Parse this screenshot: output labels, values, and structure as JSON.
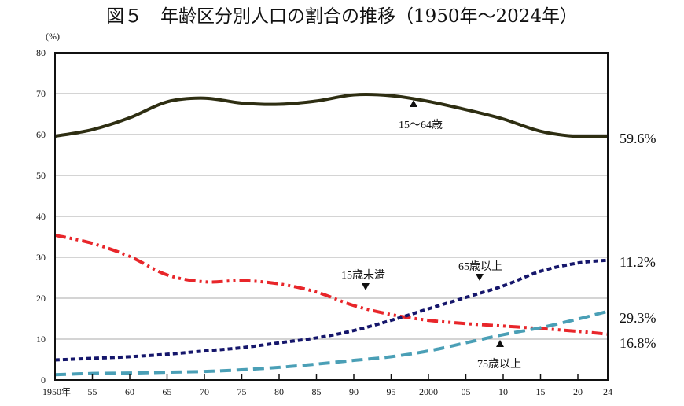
{
  "chart_data": {
    "type": "line",
    "title": "図５　年齢区分別人口の割合の推移（1950年～2024年）",
    "ylabel": "(%)",
    "xlabel": "",
    "ylim": [
      0,
      80
    ],
    "yticks": [
      0,
      10,
      20,
      30,
      40,
      50,
      60,
      70,
      80
    ],
    "xlim": [
      1950,
      2024
    ],
    "xtick_values": [
      1950,
      1955,
      1960,
      1965,
      1970,
      1975,
      1980,
      1985,
      1990,
      1995,
      2000,
      2005,
      2010,
      2015,
      2020,
      2024
    ],
    "xtick_labels": [
      "1950年",
      "55",
      "60",
      "65",
      "70",
      "75",
      "80",
      "85",
      "90",
      "95",
      "2000",
      "05",
      "10",
      "15",
      "20",
      "24"
    ],
    "grid": true,
    "x": [
      1950,
      1955,
      1960,
      1965,
      1970,
      1975,
      1980,
      1985,
      1990,
      1995,
      2000,
      2005,
      2010,
      2015,
      2020,
      2024
    ],
    "series": [
      {
        "name": "15～64歳",
        "color": "#2e2e12",
        "style": "solid",
        "end_label": "59.6%",
        "values": [
          59.6,
          61.2,
          64.1,
          68.0,
          68.9,
          67.7,
          67.4,
          68.2,
          69.7,
          69.5,
          68.1,
          66.1,
          63.8,
          60.8,
          59.5,
          59.6
        ]
      },
      {
        "name": "15歳未満",
        "color": "#e8262a",
        "style": "dash-dot-dot",
        "end_label": "11.2%",
        "values": [
          35.4,
          33.4,
          30.2,
          25.7,
          24.0,
          24.3,
          23.5,
          21.5,
          18.2,
          16.0,
          14.6,
          13.8,
          13.2,
          12.6,
          11.9,
          11.2
        ]
      },
      {
        "name": "65歳以上",
        "color": "#15166b",
        "style": "short-dash",
        "end_label": "29.3%",
        "values": [
          4.9,
          5.3,
          5.7,
          6.3,
          7.1,
          7.9,
          9.1,
          10.3,
          12.1,
          14.6,
          17.4,
          20.2,
          23.0,
          26.6,
          28.6,
          29.3
        ]
      },
      {
        "name": "75歳以上",
        "color": "#4a9fb6",
        "style": "long-dash",
        "end_label": "16.8%",
        "values": [
          1.3,
          1.6,
          1.7,
          1.9,
          2.1,
          2.5,
          3.1,
          3.9,
          4.8,
          5.7,
          7.1,
          9.1,
          11.1,
          12.8,
          14.9,
          16.8
        ]
      }
    ]
  }
}
